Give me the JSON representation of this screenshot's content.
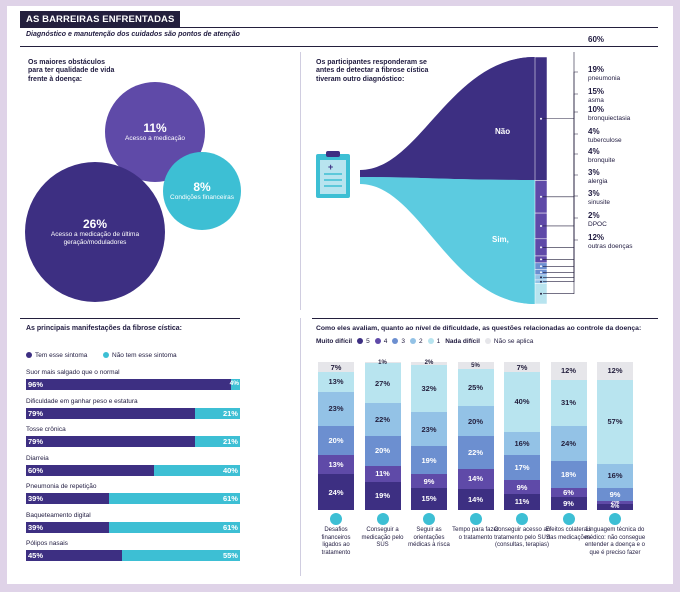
{
  "header": {
    "title": "AS BARREIRAS ENFRENTADAS",
    "subtitle": "Diagnóstico e manutenção dos cuidados são pontos de atenção"
  },
  "colors": {
    "dark_purple": "#3d2f82",
    "mid_purple": "#5f4aa8",
    "blue": "#6c8fd0",
    "light_blue": "#93c2e6",
    "cyan": "#3dbfd4",
    "pale_cyan": "#b8e4ef",
    "grey": "#e6e6ea",
    "navy": "#231f3d"
  },
  "chart_data": [
    {
      "type": "bubble",
      "title": "Os maiores obstáculos para ter qualidade de vida frente à doença:",
      "items": [
        {
          "value": 11,
          "display": "11%",
          "label": "Acesso a medicação"
        },
        {
          "value": 8,
          "display": "8%",
          "label": "Condições financeiras"
        },
        {
          "value": 26,
          "display": "26%",
          "label": "Acesso a medicação de última geração/moduladores"
        }
      ]
    },
    {
      "type": "sankey",
      "title": "Os participantes responderam se antes de detectar a fibrose cística tiveram outro diagnóstico:",
      "flows": [
        {
          "label": "Não",
          "value": 60
        },
        {
          "label": "Sim,",
          "value": 40
        }
      ],
      "items": [
        {
          "display": "60%",
          "label": ""
        },
        {
          "display": "19%",
          "label": "pneumonia"
        },
        {
          "display": "15%",
          "label": "asma"
        },
        {
          "display": "10%",
          "label": "bronquiectasia"
        },
        {
          "display": "4%",
          "label": "tuberculose"
        },
        {
          "display": "4%",
          "label": "bronquite"
        },
        {
          "display": "3%",
          "label": "alergia"
        },
        {
          "display": "3%",
          "label": "sinusite"
        },
        {
          "display": "2%",
          "label": "DPOC"
        },
        {
          "display": "12%",
          "label": "outras doenças"
        }
      ]
    },
    {
      "type": "bar",
      "orientation": "horizontal-stacked",
      "title": "As principais manifestações da fibrose cística:",
      "legend": [
        "Tem esse sintoma",
        "Não tem esse sintoma"
      ],
      "series": [
        {
          "name": "Tem esse sintoma",
          "values": [
            96,
            79,
            79,
            60,
            39,
            39,
            45
          ],
          "labels": [
            "96%",
            "79%",
            "79%",
            "60%",
            "39%",
            "39%",
            "45%"
          ]
        },
        {
          "name": "Não tem esse sintoma",
          "values": [
            4,
            21,
            21,
            40,
            61,
            61,
            55
          ],
          "labels": [
            "4%",
            "21%",
            "21%",
            "40%",
            "61%",
            "61%",
            "55%"
          ]
        }
      ],
      "categories": [
        "Suor mais salgado que o normal",
        "Dificuldade em ganhar peso e estatura",
        "Tosse crônica",
        "Diarreia",
        "Pneumonia de repetição",
        "Baqueteamento digital",
        "Pólipos nasais"
      ]
    },
    {
      "type": "bar",
      "orientation": "vertical-stacked-100",
      "title": "Como eles avaliam, quanto ao nível de dificuldade, as questões relacionadas ao controle da doença:",
      "legend": [
        "Muito difícil",
        "5",
        "4",
        "3",
        "2",
        "1",
        "Nada difícil",
        "Não se aplica"
      ],
      "categories": [
        "Desafios financeiros ligados ao tratamento",
        "Conseguir a medicação pelo SUS",
        "Seguir as orientações médicas à risca",
        "Tempo para fazer o tratamento",
        "Conseguir acesso ao tratamento pelo SUS (consultas, terapias)",
        "Efeitos colaterais das medicações",
        "Linguagem técnica do médico: não consegue entender a doença e o que é preciso fazer"
      ],
      "series": [
        {
          "name": "5",
          "values": [
            24,
            19,
            15,
            14,
            11,
            9,
            4
          ]
        },
        {
          "name": "4",
          "values": [
            13,
            11,
            9,
            14,
            9,
            6,
            2
          ]
        },
        {
          "name": "3",
          "values": [
            20,
            20,
            19,
            22,
            17,
            18,
            9
          ]
        },
        {
          "name": "2",
          "values": [
            23,
            22,
            23,
            20,
            16,
            24,
            16
          ]
        },
        {
          "name": "1",
          "values": [
            13,
            27,
            32,
            25,
            40,
            31,
            57
          ]
        },
        {
          "name": "Não se aplica",
          "values": [
            7,
            1,
            2,
            5,
            7,
            12,
            12
          ]
        }
      ],
      "labels": [
        [
          "24%",
          "13%",
          "20%",
          "23%",
          "13%",
          "7%"
        ],
        [
          "19%",
          "11%",
          "20%",
          "22%",
          "27%",
          "1%"
        ],
        [
          "15%",
          "9%",
          "19%",
          "23%",
          "32%",
          "2%"
        ],
        [
          "14%",
          "14%",
          "22%",
          "20%",
          "25%",
          "5%"
        ],
        [
          "11%",
          "9%",
          "17%",
          "16%",
          "40%",
          "7%"
        ],
        [
          "9%",
          "6%",
          "18%",
          "24%",
          "31%",
          "12%"
        ],
        [
          "4%",
          "2%",
          "9%",
          "16%",
          "57%",
          "12%"
        ]
      ]
    }
  ]
}
